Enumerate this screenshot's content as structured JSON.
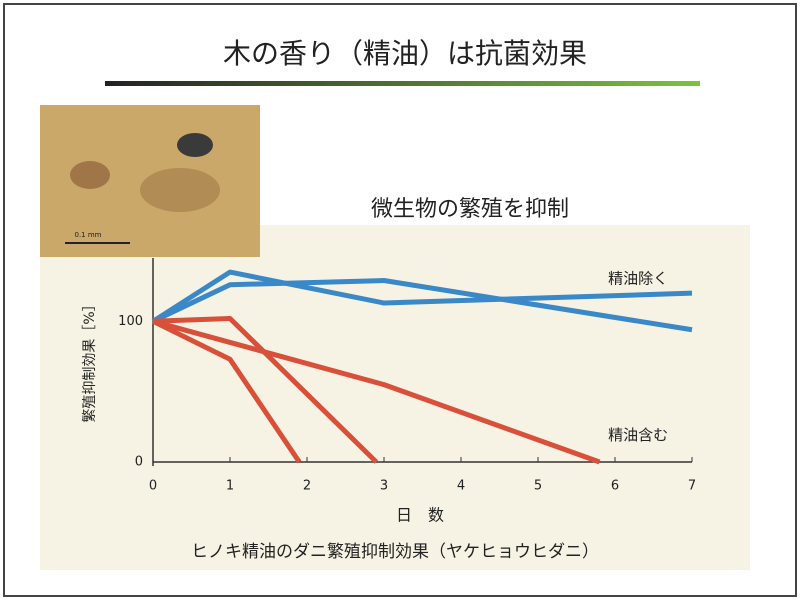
{
  "slide_title": "木の香り（精油）は抗菌効果",
  "photo": {
    "scale_label": "0.1 mm"
  },
  "chart_data": {
    "type": "line",
    "title": "微生物の繁殖を抑制",
    "caption": "ヒノキ精油のダニ繁殖抑制効果（ヤケヒョウヒダニ）",
    "xlabel": "日　数",
    "ylabel": "繁殖抑制効果［%］",
    "xlim": [
      0,
      7
    ],
    "xticks": [
      0,
      1,
      2,
      3,
      4,
      5,
      6,
      7
    ],
    "ylim": [
      0,
      145
    ],
    "yticks": [
      0,
      100
    ],
    "grid": false,
    "series": [
      {
        "color": "#3a88c8",
        "x": [
          0,
          1,
          3,
          7
        ],
        "values": [
          100,
          135,
          113,
          120
        ]
      },
      {
        "color": "#3a88c8",
        "x": [
          0,
          1,
          3,
          7
        ],
        "values": [
          100,
          126,
          129,
          94
        ]
      },
      {
        "color": "#d9503a",
        "x": [
          0,
          1,
          1.9
        ],
        "values": [
          100,
          73,
          0
        ]
      },
      {
        "color": "#d9503a",
        "x": [
          0,
          1,
          2.9
        ],
        "values": [
          100,
          102,
          0
        ]
      },
      {
        "color": "#d9503a",
        "x": [
          0,
          3,
          5.8
        ],
        "values": [
          100,
          55,
          0
        ]
      }
    ],
    "annotations": [
      {
        "text": "精油除く",
        "x": 6.3,
        "y": 130
      },
      {
        "text": "精油含む",
        "x": 6.3,
        "y": 19
      }
    ]
  }
}
